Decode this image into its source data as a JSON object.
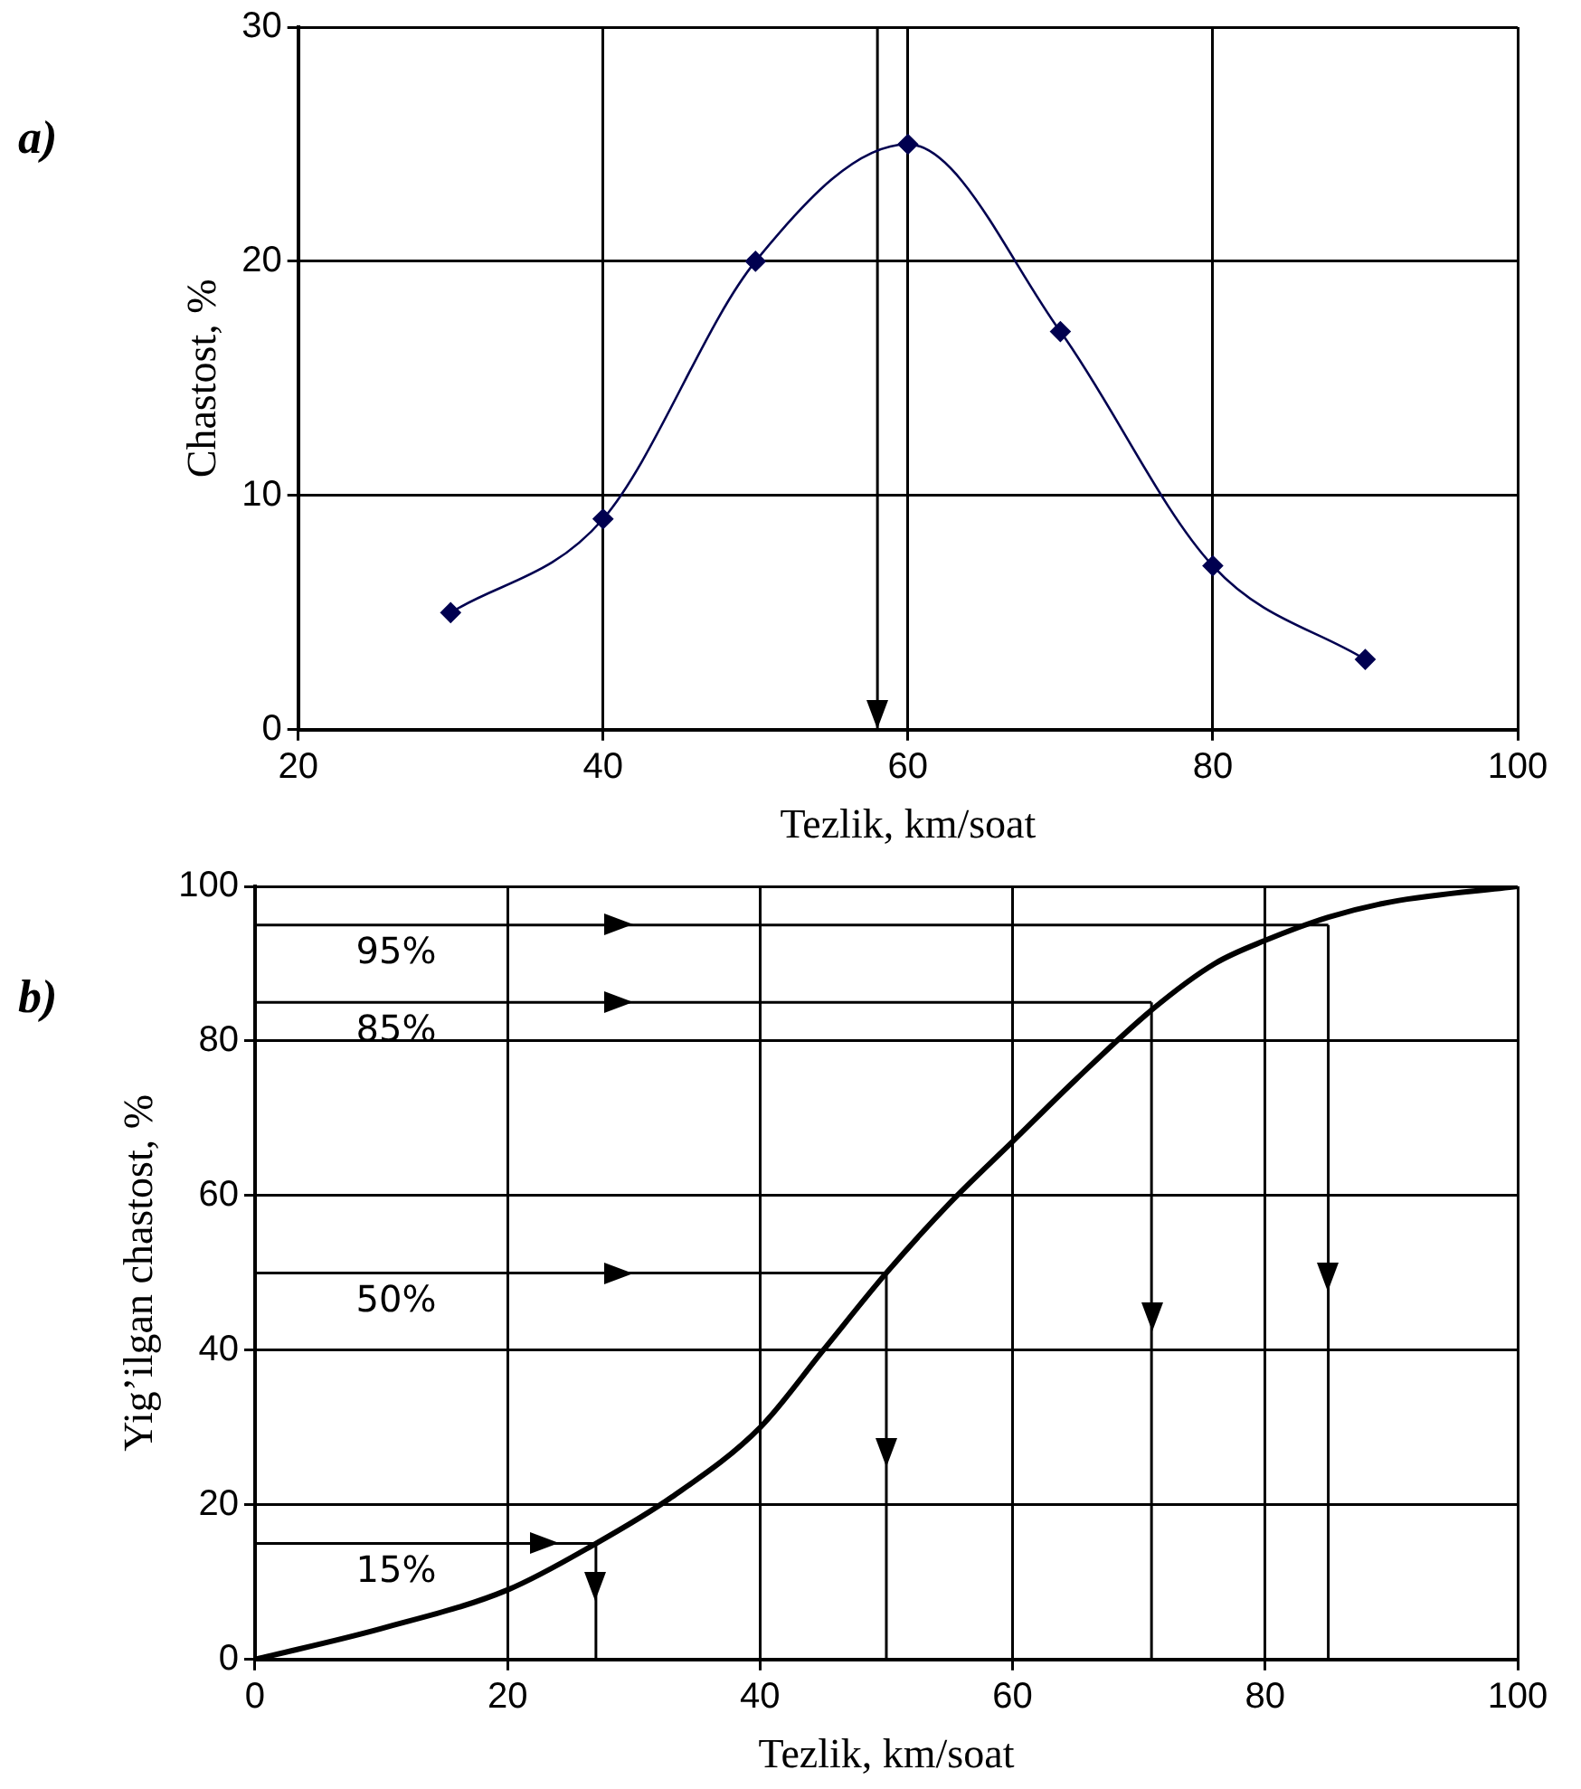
{
  "chart_data": [
    {
      "type": "line",
      "xlabel": "Tezlik, km/soat",
      "ylabel": "Chastost, %",
      "annotations": [
        "a)"
      ],
      "x": [
        30,
        40,
        50,
        60,
        70,
        80,
        90
      ],
      "series": [
        {
          "color": "#000050",
          "values": [
            5,
            9,
            20,
            25,
            17,
            7,
            3
          ]
        }
      ],
      "xlim": [
        20,
        100
      ],
      "xticks": [
        20,
        40,
        60,
        80,
        100
      ],
      "ylim": [
        0,
        30
      ],
      "yticks": [
        0,
        10,
        20,
        30
      ],
      "grid": true,
      "marker": "diamond",
      "line_style": "solid",
      "ref_lines": [
        {
          "axis": "x",
          "value": 58,
          "color": "#000000"
        }
      ]
    },
    {
      "type": "line",
      "xlabel": "Tezlik, km/soat",
      "ylabel": "Yig’ilgan chastost, %",
      "annotations": [
        "b)"
      ],
      "x": [
        0,
        10,
        20,
        27,
        33,
        40,
        45,
        50,
        55,
        60,
        65,
        71,
        76,
        80,
        85,
        90,
        100
      ],
      "series": [
        {
          "color": "#000000",
          "values": [
            0,
            4,
            9,
            15,
            21,
            30,
            40,
            50,
            59,
            67,
            75,
            84,
            90,
            93,
            96,
            98,
            100
          ]
        }
      ],
      "xlim": [
        0,
        100
      ],
      "xticks": [
        0,
        20,
        40,
        60,
        80,
        100
      ],
      "ylim": [
        0,
        100
      ],
      "yticks": [
        0,
        20,
        40,
        60,
        80,
        100
      ],
      "grid": true,
      "marker": "none",
      "line_style": "solid",
      "ref_lines": [
        {
          "axis": "y",
          "value": 95,
          "label": "95%",
          "color": "#000000"
        },
        {
          "axis": "y",
          "value": 85,
          "label": "85%",
          "color": "#000000"
        },
        {
          "axis": "y",
          "value": 50,
          "label": "50%",
          "color": "#000000"
        },
        {
          "axis": "y",
          "value": 15,
          "label": "15%",
          "color": "#000000"
        },
        {
          "axis": "x",
          "value": 27,
          "color": "#000000"
        },
        {
          "axis": "x",
          "value": 50,
          "color": "#000000"
        },
        {
          "axis": "x",
          "value": 71,
          "color": "#000000"
        },
        {
          "axis": "x",
          "value": 85,
          "color": "#000000"
        }
      ]
    }
  ]
}
